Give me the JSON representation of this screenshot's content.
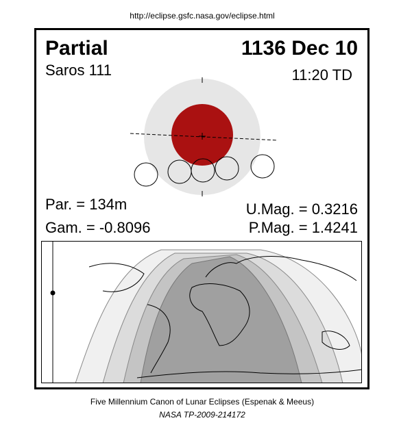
{
  "header": {
    "url": "http://eclipse.gsfc.nasa.gov/eclipse.html"
  },
  "eclipse": {
    "type": "Partial",
    "date": "1136 Dec 10",
    "saros": "Saros 111",
    "time": "11:20 TD",
    "parameters": {
      "par": "Par. = 134m",
      "gam": "Gam. = -0.8096",
      "umag": "U.Mag. = 0.3216",
      "pmag": "P.Mag. = 1.4241"
    }
  },
  "footer": {
    "line1": "Five Millennium Canon of Lunar Eclipses (Espenak & Meeus)",
    "line2": "NASA TP-2009-214172"
  }
}
